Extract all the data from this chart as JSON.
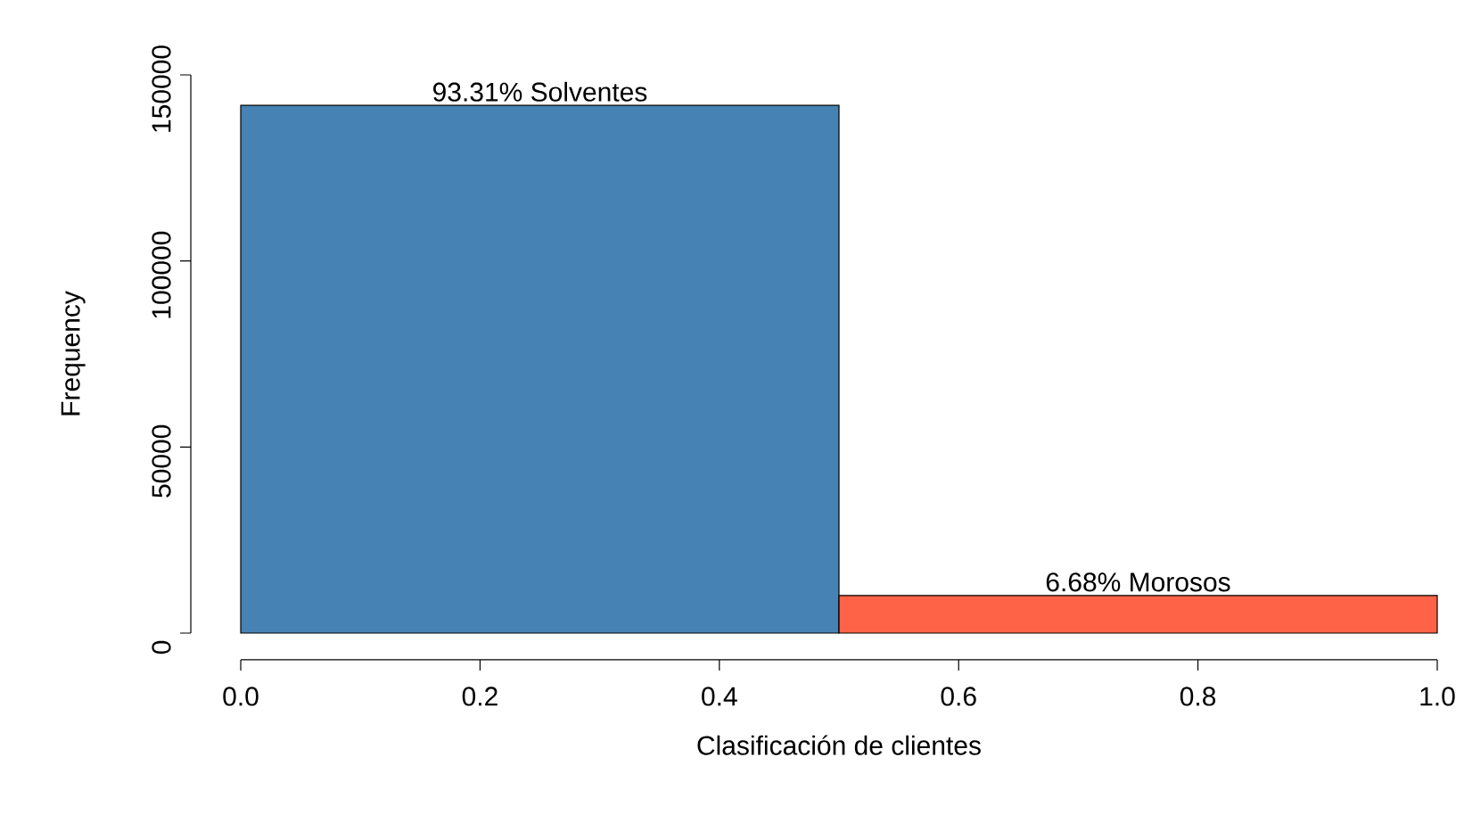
{
  "chart_data": {
    "type": "histogram",
    "xlabel": "Clasificación de clientes",
    "ylabel": "Frequency",
    "bins": [
      0,
      0.5,
      1.0
    ],
    "values": [
      141800,
      10100
    ],
    "colors": [
      "#4682b4",
      "#ff6347"
    ],
    "xlim": [
      0,
      1.0
    ],
    "ylim": [
      0,
      150000
    ],
    "xticks": [
      {
        "value": 0,
        "label": "0.0"
      },
      {
        "value": 0.2,
        "label": "0.2"
      },
      {
        "value": 0.4,
        "label": "0.4"
      },
      {
        "value": 0.6,
        "label": "0.6"
      },
      {
        "value": 0.8,
        "label": "0.8"
      },
      {
        "value": 1.0,
        "label": "1.0"
      }
    ],
    "yticks": [
      0,
      50000,
      100000,
      150000
    ],
    "annotations": [
      {
        "text": "93.31% Solventes",
        "x": 0.25,
        "y": 141800
      },
      {
        "text": "6.68% Morosos",
        "x": 0.75,
        "y": 10100
      }
    ],
    "grid": false
  }
}
